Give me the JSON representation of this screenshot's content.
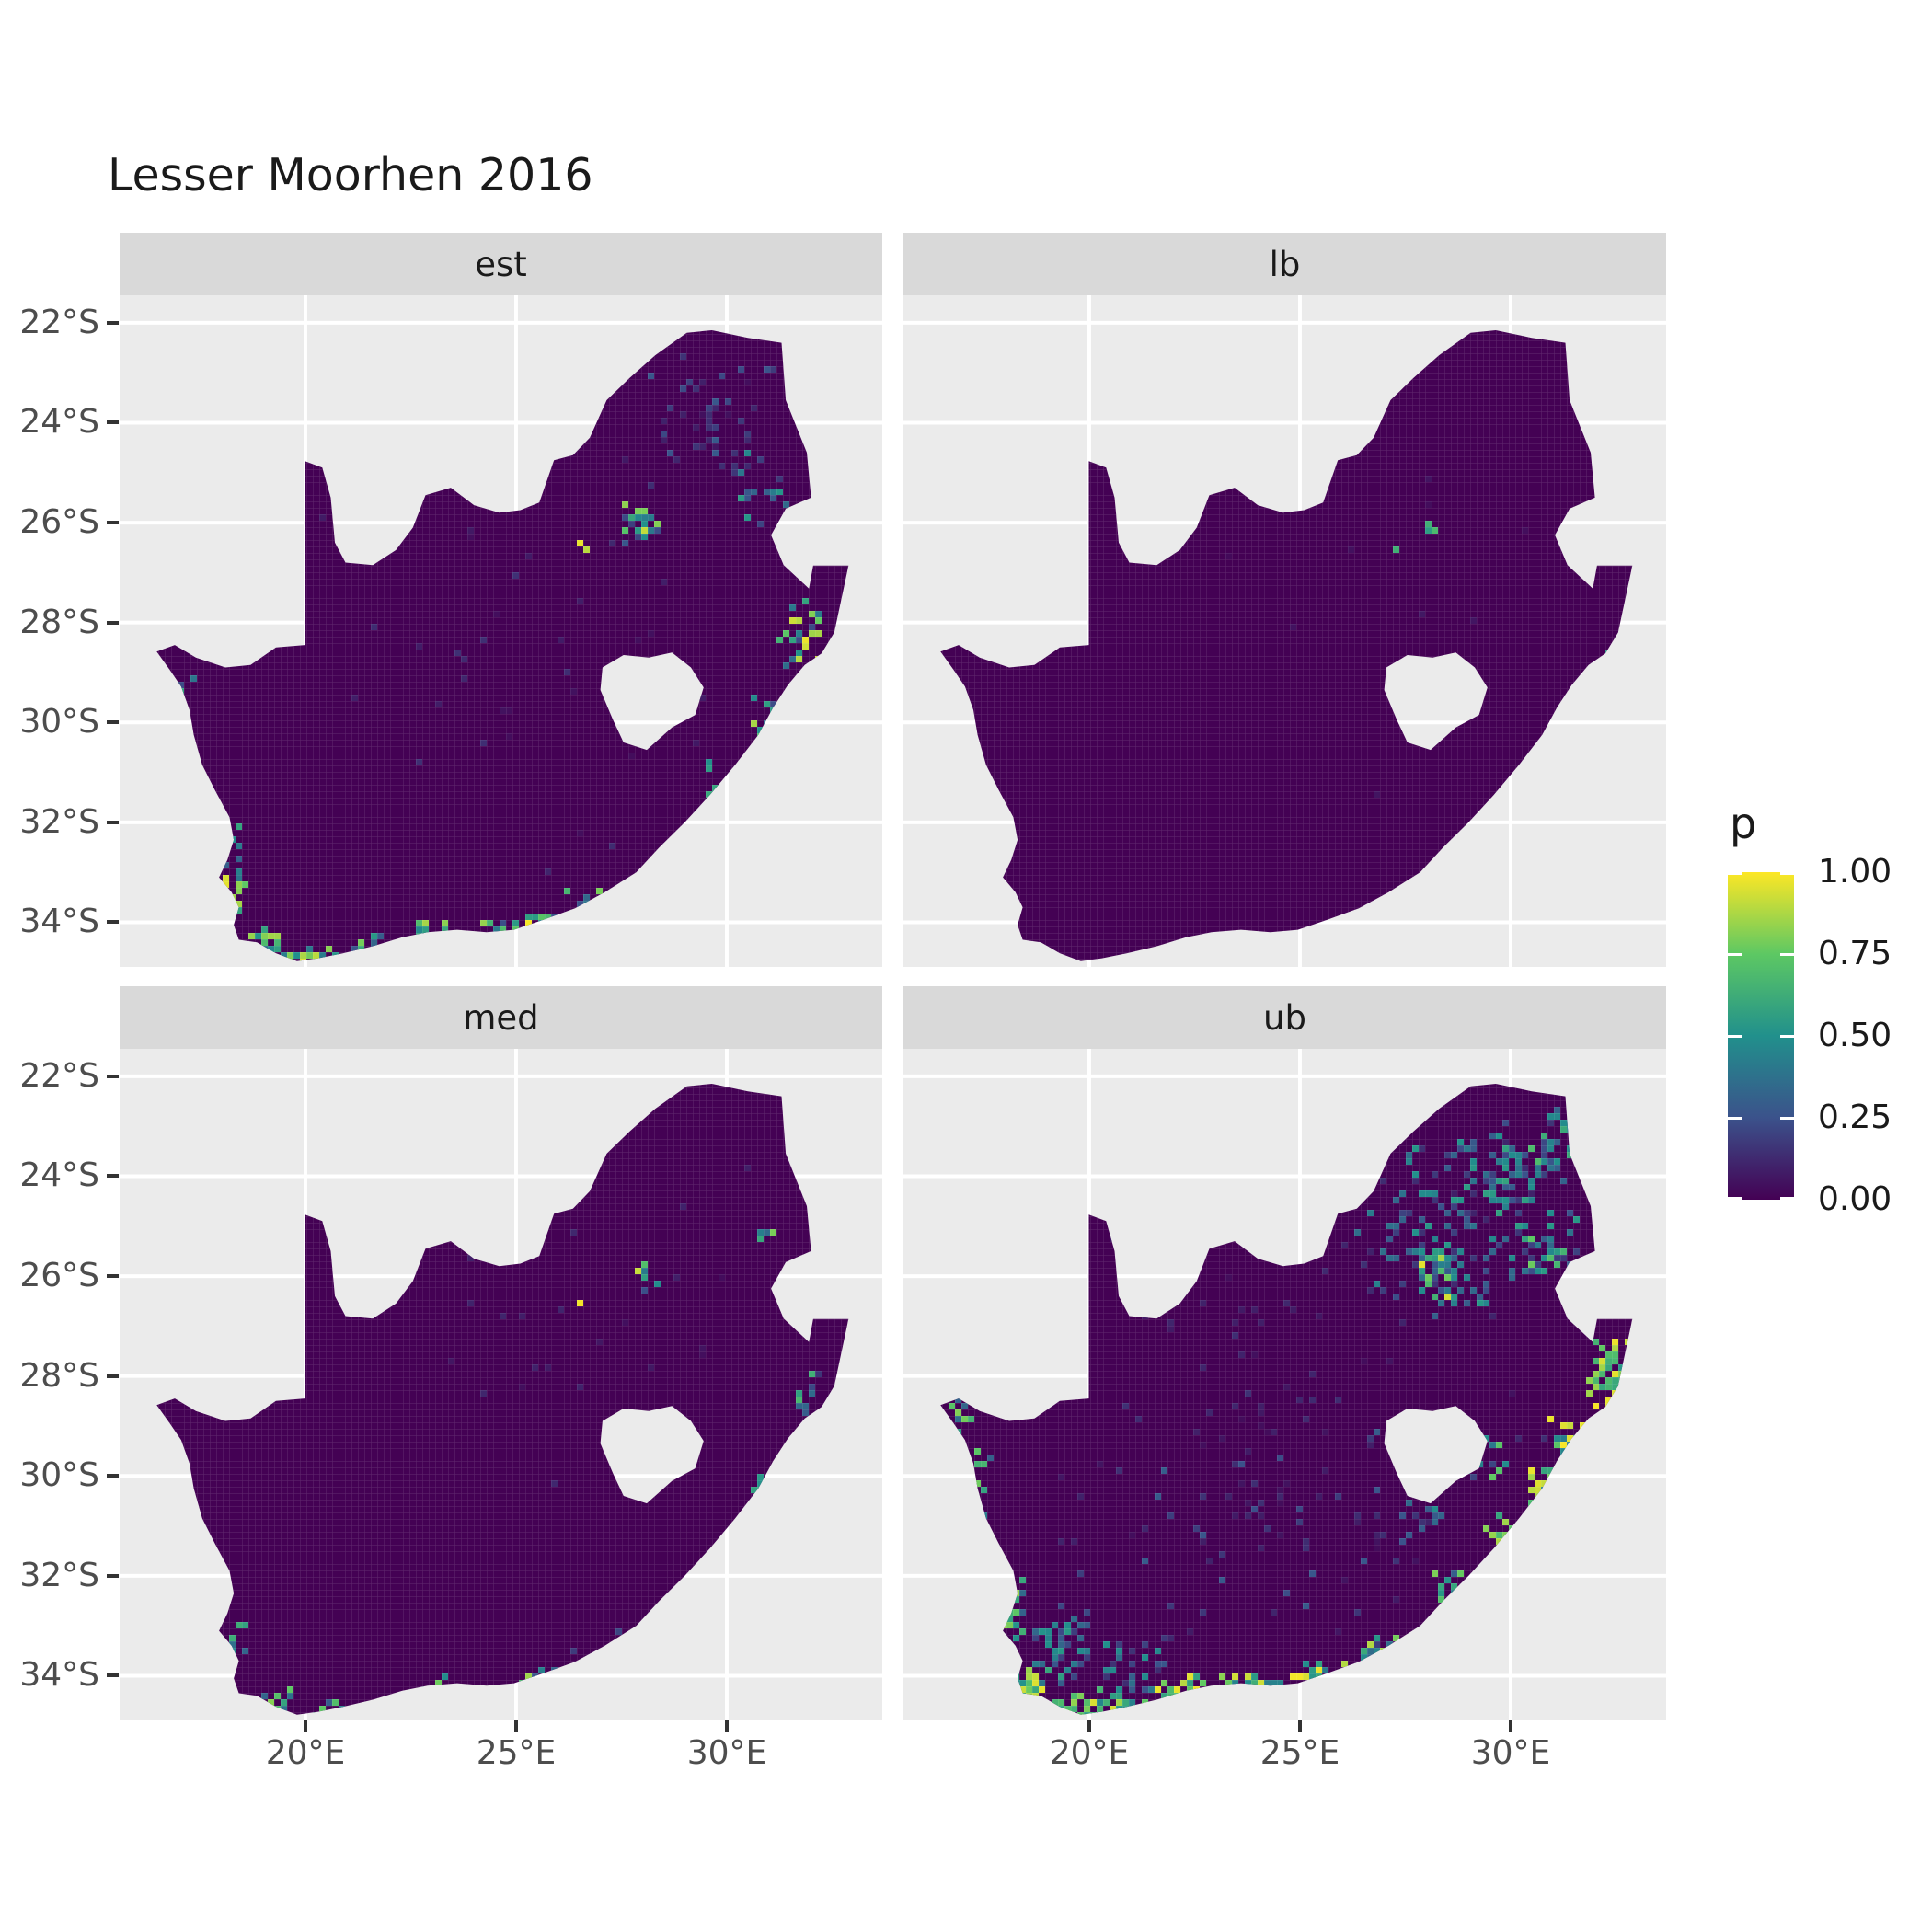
{
  "chart_data": {
    "type": "heatmap",
    "subtype": "faceted-raster-map",
    "title": "Lesser Moorhen 2016",
    "region": "South Africa",
    "legend": {
      "title": "p",
      "tick_labels": [
        "1.00",
        "0.75",
        "0.50",
        "0.25",
        "0.00"
      ],
      "tick_values": [
        1,
        0.75,
        0.5,
        0.25,
        0
      ],
      "stops": [
        [
          0,
          "#440154"
        ],
        [
          0.25,
          "#3B528B"
        ],
        [
          0.5,
          "#21908C"
        ],
        [
          0.75,
          "#5DC863"
        ],
        [
          1,
          "#FDE725"
        ]
      ]
    },
    "axes": {
      "x": {
        "tick_values": [
          20,
          25,
          30
        ],
        "tick_labels": [
          "20°E",
          "25°E",
          "30°E"
        ]
      },
      "y": {
        "tick_values": [
          -22,
          -24,
          -26,
          -28,
          -30,
          -32,
          -34
        ],
        "tick_labels": [
          "22°S",
          "24°S",
          "26°S",
          "28°S",
          "30°S",
          "32°S",
          "34°S"
        ]
      }
    },
    "colors": {
      "panel_bg": "#EBEBEB",
      "strip_bg": "#D9D9D9",
      "gridline": "#FFFFFF",
      "raster_base": "#440154",
      "cell_grid": "rgba(255,255,255,0.16)",
      "axis_text": "#4D4D4D",
      "tick_mark": "#333333",
      "title_text": "#1A1A1A"
    },
    "map": {
      "outline": [
        [
          16.47,
          -28.58
        ],
        [
          16.9,
          -28.45
        ],
        [
          17.4,
          -28.7
        ],
        [
          18.1,
          -28.9
        ],
        [
          18.7,
          -28.85
        ],
        [
          19.3,
          -28.5
        ],
        [
          19.99,
          -28.45
        ],
        [
          19.99,
          -24.77
        ],
        [
          20.4,
          -24.9
        ],
        [
          20.6,
          -25.5
        ],
        [
          20.7,
          -26.4
        ],
        [
          20.95,
          -26.8
        ],
        [
          21.6,
          -26.85
        ],
        [
          22.15,
          -26.55
        ],
        [
          22.55,
          -26.1
        ],
        [
          22.85,
          -25.45
        ],
        [
          23.45,
          -25.3
        ],
        [
          24.0,
          -25.65
        ],
        [
          24.6,
          -25.8
        ],
        [
          25.1,
          -25.75
        ],
        [
          25.55,
          -25.6
        ],
        [
          25.9,
          -24.75
        ],
        [
          26.35,
          -24.65
        ],
        [
          26.75,
          -24.3
        ],
        [
          27.15,
          -23.55
        ],
        [
          27.7,
          -23.1
        ],
        [
          28.3,
          -22.65
        ],
        [
          29.05,
          -22.2
        ],
        [
          29.65,
          -22.15
        ],
        [
          30.5,
          -22.3
        ],
        [
          31.3,
          -22.4
        ],
        [
          31.4,
          -23.55
        ],
        [
          31.9,
          -24.6
        ],
        [
          32.0,
          -25.5
        ],
        [
          31.4,
          -25.72
        ],
        [
          31.05,
          -26.25
        ],
        [
          31.35,
          -26.85
        ],
        [
          31.95,
          -27.32
        ],
        [
          32.05,
          -26.86
        ],
        [
          32.89,
          -26.86
        ],
        [
          32.55,
          -28.2
        ],
        [
          32.25,
          -28.62
        ],
        [
          31.85,
          -28.85
        ],
        [
          31.45,
          -29.25
        ],
        [
          31.1,
          -29.7
        ],
        [
          30.75,
          -30.25
        ],
        [
          30.2,
          -30.85
        ],
        [
          29.6,
          -31.45
        ],
        [
          29.0,
          -32.0
        ],
        [
          28.4,
          -32.5
        ],
        [
          27.85,
          -33.0
        ],
        [
          27.1,
          -33.4
        ],
        [
          26.4,
          -33.72
        ],
        [
          25.65,
          -33.95
        ],
        [
          24.95,
          -34.15
        ],
        [
          24.3,
          -34.2
        ],
        [
          23.6,
          -34.15
        ],
        [
          22.9,
          -34.2
        ],
        [
          22.3,
          -34.3
        ],
        [
          21.6,
          -34.48
        ],
        [
          20.9,
          -34.62
        ],
        [
          20.3,
          -34.72
        ],
        [
          19.8,
          -34.78
        ],
        [
          19.3,
          -34.62
        ],
        [
          18.85,
          -34.4
        ],
        [
          18.42,
          -34.35
        ],
        [
          18.3,
          -34.05
        ],
        [
          18.42,
          -33.7
        ],
        [
          18.25,
          -33.4
        ],
        [
          17.95,
          -33.1
        ],
        [
          18.15,
          -32.75
        ],
        [
          18.3,
          -32.35
        ],
        [
          18.2,
          -31.9
        ],
        [
          17.85,
          -31.35
        ],
        [
          17.55,
          -30.85
        ],
        [
          17.35,
          -30.25
        ],
        [
          17.25,
          -29.75
        ],
        [
          17.05,
          -29.28
        ],
        [
          16.79,
          -28.96
        ]
      ],
      "hole": [
        [
          27.05,
          -28.9
        ],
        [
          27.55,
          -28.65
        ],
        [
          28.15,
          -28.7
        ],
        [
          28.7,
          -28.6
        ],
        [
          29.15,
          -28.9
        ],
        [
          29.45,
          -29.3
        ],
        [
          29.25,
          -29.85
        ],
        [
          28.7,
          -30.1
        ],
        [
          28.1,
          -30.55
        ],
        [
          27.55,
          -30.4
        ],
        [
          27.3,
          -29.95
        ],
        [
          27.0,
          -29.35
        ]
      ]
    },
    "facets": [
      {
        "label": "est",
        "seed": 101,
        "hotspots": [
          [
            28.05,
            -26.05,
            0.55,
            0.55,
            26,
            0.1,
            0.95
          ],
          [
            26.62,
            -26.5,
            0.12,
            0.12,
            2,
            0.85,
            1
          ],
          [
            29.6,
            -23.9,
            1.8,
            1.5,
            45,
            0.04,
            0.3
          ],
          [
            30.9,
            -25.3,
            0.9,
            0.9,
            18,
            0.1,
            0.6
          ],
          [
            31.9,
            -28.2,
            0.8,
            0.9,
            30,
            0.2,
            1
          ],
          [
            30.9,
            -30.1,
            0.6,
            0.7,
            16,
            0.2,
            0.9
          ],
          [
            29.9,
            -31.3,
            0.7,
            0.8,
            10,
            0.1,
            0.6
          ],
          [
            19.0,
            -34.45,
            0.6,
            0.35,
            26,
            0.3,
            1
          ],
          [
            20.1,
            -34.75,
            0.7,
            0.3,
            28,
            0.3,
            1
          ],
          [
            21.5,
            -34.55,
            0.7,
            0.3,
            18,
            0.2,
            0.9
          ],
          [
            22.9,
            -34.2,
            0.8,
            0.3,
            20,
            0.2,
            1
          ],
          [
            24.5,
            -34.2,
            0.8,
            0.3,
            14,
            0.2,
            0.9
          ],
          [
            25.7,
            -34.0,
            0.6,
            0.3,
            14,
            0.2,
            1
          ],
          [
            27.0,
            -33.5,
            0.8,
            0.4,
            12,
            0.15,
            0.8
          ],
          [
            18.35,
            -33.2,
            0.35,
            0.8,
            16,
            0.3,
            1
          ],
          [
            18.3,
            -32.4,
            0.25,
            0.5,
            8,
            0.2,
            0.8
          ],
          [
            17.1,
            -29.2,
            0.3,
            0.5,
            5,
            0.2,
            0.6
          ],
          [
            25.0,
            -29.0,
            6.0,
            5.0,
            40,
            0.03,
            0.15
          ]
        ]
      },
      {
        "label": "lb",
        "seed": 202,
        "hotspots": [
          [
            28.1,
            -26.1,
            0.3,
            0.3,
            3,
            0.5,
            1
          ],
          [
            27.3,
            -26.6,
            0.1,
            0.1,
            1,
            0.6,
            0.8
          ],
          [
            32.3,
            -28.6,
            0.1,
            0.1,
            1,
            0.4,
            0.6
          ],
          [
            25.0,
            -28.0,
            6.0,
            5.0,
            12,
            0.02,
            0.08
          ]
        ]
      },
      {
        "label": "med",
        "seed": 303,
        "hotspots": [
          [
            28.0,
            -26.1,
            0.4,
            0.4,
            8,
            0.2,
            1
          ],
          [
            26.6,
            -26.5,
            0.1,
            0.1,
            1,
            0.9,
            1
          ],
          [
            30.9,
            -25.3,
            0.3,
            0.3,
            4,
            0.3,
            0.8
          ],
          [
            31.9,
            -28.3,
            0.6,
            0.7,
            10,
            0.15,
            0.7
          ],
          [
            30.8,
            -30.2,
            0.4,
            0.5,
            6,
            0.15,
            0.7
          ],
          [
            19.3,
            -34.5,
            0.6,
            0.3,
            10,
            0.2,
            0.9
          ],
          [
            20.5,
            -34.7,
            0.6,
            0.3,
            8,
            0.2,
            0.8
          ],
          [
            22.9,
            -34.2,
            0.8,
            0.3,
            8,
            0.2,
            0.8
          ],
          [
            25.6,
            -34.0,
            0.7,
            0.3,
            7,
            0.2,
            0.9
          ],
          [
            27.0,
            -33.5,
            0.7,
            0.4,
            5,
            0.15,
            0.6
          ],
          [
            18.35,
            -33.3,
            0.3,
            0.6,
            6,
            0.2,
            0.8
          ],
          [
            26.0,
            -27.0,
            5.0,
            4.0,
            25,
            0.03,
            0.12
          ]
        ]
      },
      {
        "label": "ub",
        "seed": 404,
        "hotspots": [
          [
            28.6,
            -25.0,
            2.6,
            2.2,
            150,
            0.1,
            0.55
          ],
          [
            28.3,
            -26.0,
            0.7,
            0.6,
            40,
            0.2,
            1
          ],
          [
            29.8,
            -23.9,
            1.3,
            1.0,
            50,
            0.1,
            0.6
          ],
          [
            31.2,
            -23.3,
            0.8,
            0.8,
            30,
            0.15,
            0.7
          ],
          [
            30.8,
            -25.4,
            0.9,
            0.8,
            35,
            0.15,
            0.8
          ],
          [
            32.3,
            -28.0,
            0.6,
            0.8,
            45,
            0.5,
            1
          ],
          [
            31.3,
            -29.3,
            0.5,
            0.7,
            30,
            0.4,
            1
          ],
          [
            30.7,
            -30.3,
            0.5,
            0.6,
            25,
            0.4,
            1
          ],
          [
            29.8,
            -31.3,
            0.5,
            0.6,
            18,
            0.3,
            0.9
          ],
          [
            28.6,
            -32.3,
            0.5,
            0.5,
            14,
            0.3,
            0.9
          ],
          [
            18.6,
            -34.2,
            0.5,
            0.5,
            35,
            0.5,
            1
          ],
          [
            19.6,
            -34.7,
            0.7,
            0.35,
            40,
            0.5,
            1
          ],
          [
            20.8,
            -34.6,
            0.7,
            0.35,
            30,
            0.4,
            1
          ],
          [
            22.2,
            -34.35,
            0.8,
            0.35,
            30,
            0.4,
            1
          ],
          [
            23.8,
            -34.2,
            0.9,
            0.35,
            26,
            0.4,
            1
          ],
          [
            25.5,
            -34.0,
            0.8,
            0.35,
            24,
            0.4,
            1
          ],
          [
            26.9,
            -33.5,
            0.8,
            0.45,
            20,
            0.3,
            0.9
          ],
          [
            18.2,
            -32.6,
            0.4,
            0.9,
            25,
            0.3,
            1
          ],
          [
            17.3,
            -30.2,
            0.35,
            1.2,
            14,
            0.2,
            0.8
          ],
          [
            16.9,
            -28.8,
            0.3,
            0.5,
            10,
            0.3,
            0.9
          ],
          [
            19.3,
            -33.4,
            1.0,
            0.9,
            45,
            0.15,
            0.6
          ],
          [
            20.8,
            -33.9,
            1.2,
            0.7,
            30,
            0.1,
            0.5
          ],
          [
            29.3,
            -29.7,
            0.6,
            0.6,
            20,
            0.2,
            0.8
          ],
          [
            27.8,
            -30.8,
            0.8,
            0.5,
            15,
            0.1,
            0.5
          ],
          [
            23.5,
            -31.5,
            4.5,
            2.5,
            60,
            0.05,
            0.3
          ],
          [
            25.0,
            -28.5,
            6.5,
            5.5,
            80,
            0.03,
            0.15
          ]
        ]
      }
    ]
  }
}
